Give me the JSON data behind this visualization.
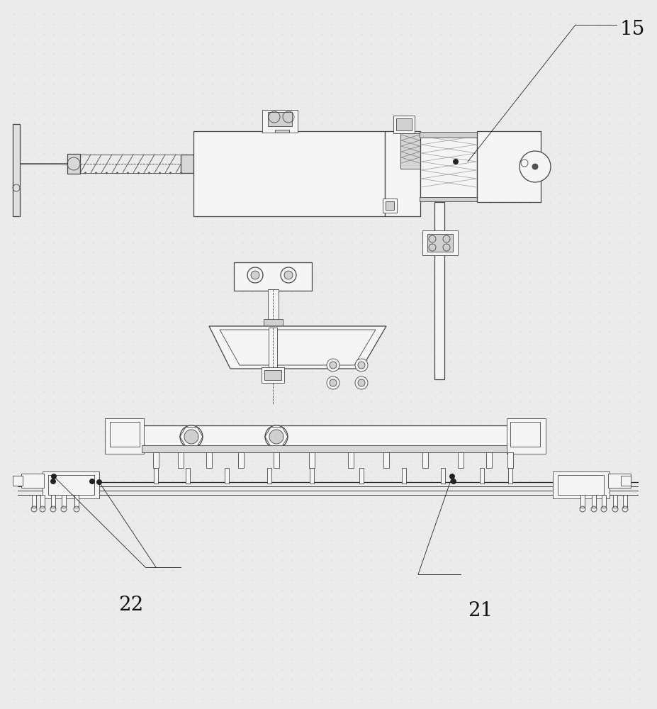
{
  "background_color": "#ebebeb",
  "line_color": "#444444",
  "dark_line": "#222222",
  "fill_color": "#f5f5f5",
  "hatch_color": "#888888",
  "label_15": "15",
  "label_21": "21",
  "label_22": "22",
  "label_fontsize": 20,
  "figsize": [
    9.27,
    10.0
  ],
  "dpi": 100
}
